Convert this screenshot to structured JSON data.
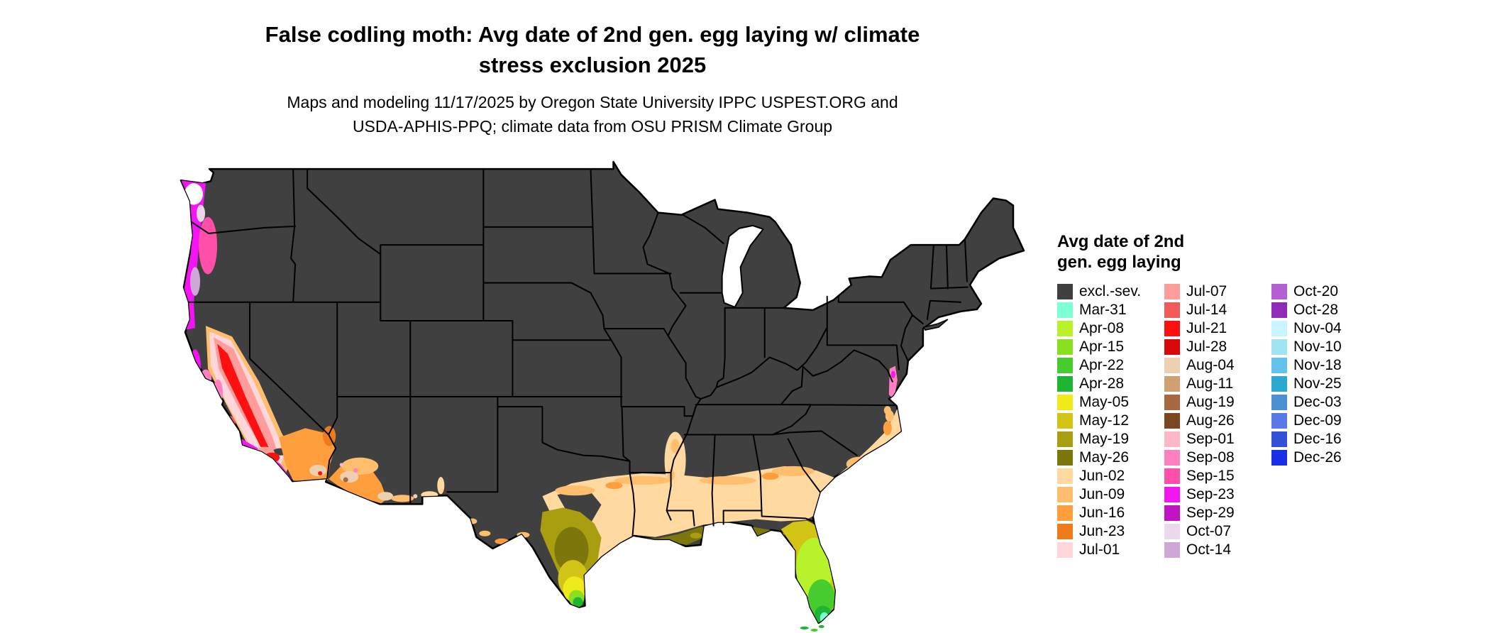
{
  "title": {
    "line1": "False codling moth: Avg date of 2nd gen. egg laying w/ climate",
    "line2": "stress exclusion 2025"
  },
  "subtitle": {
    "line1": "Maps and modeling 11/17/2025 by Oregon State University IPPC USPEST.ORG and",
    "line2": "USDA-APHIS-PPQ; climate data from OSU PRISM Climate Group"
  },
  "legend": {
    "title_line1": "Avg date of 2nd",
    "title_line2": "gen. egg laying",
    "columns": [
      [
        {
          "label": "excl.-sev.",
          "color": "#404040"
        },
        {
          "label": "Mar-31",
          "color": "#7fffd4"
        },
        {
          "label": "Apr-08",
          "color": "#b8f22b"
        },
        {
          "label": "Apr-15",
          "color": "#8ae01e"
        },
        {
          "label": "Apr-22",
          "color": "#46cc2e"
        },
        {
          "label": "Apr-28",
          "color": "#1fb434"
        },
        {
          "label": "May-05",
          "color": "#f0ea1a"
        },
        {
          "label": "May-12",
          "color": "#d2c414"
        },
        {
          "label": "May-19",
          "color": "#a89e10"
        },
        {
          "label": "May-26",
          "color": "#7d760b"
        },
        {
          "label": "Jun-02",
          "color": "#ffd9a0"
        },
        {
          "label": "Jun-09",
          "color": "#ffbe6e"
        },
        {
          "label": "Jun-16",
          "color": "#ff9e3d"
        },
        {
          "label": "Jun-23",
          "color": "#ef7c1c"
        },
        {
          "label": "Jul-01",
          "color": "#ffd6da"
        }
      ],
      [
        {
          "label": "Jul-07",
          "color": "#ff9d9d"
        },
        {
          "label": "Jul-14",
          "color": "#f25a5a"
        },
        {
          "label": "Jul-21",
          "color": "#fe1010"
        },
        {
          "label": "Jul-28",
          "color": "#d90707"
        },
        {
          "label": "Aug-04",
          "color": "#ecd0b0"
        },
        {
          "label": "Aug-11",
          "color": "#d0a070"
        },
        {
          "label": "Aug-19",
          "color": "#a86840"
        },
        {
          "label": "Aug-26",
          "color": "#7c4620"
        },
        {
          "label": "Sep-01",
          "color": "#ffb6c9"
        },
        {
          "label": "Sep-08",
          "color": "#ff7fc0"
        },
        {
          "label": "Sep-15",
          "color": "#ff4fa8"
        },
        {
          "label": "Sep-23",
          "color": "#f414f4"
        },
        {
          "label": "Sep-29",
          "color": "#c213c2"
        },
        {
          "label": "Oct-07",
          "color": "#ecd8ec"
        },
        {
          "label": "Oct-14",
          "color": "#cfa6d8"
        }
      ],
      [
        {
          "label": "Oct-20",
          "color": "#b560d2"
        },
        {
          "label": "Oct-28",
          "color": "#8e2cb8"
        },
        {
          "label": "Nov-04",
          "color": "#c9f4ff"
        },
        {
          "label": "Nov-10",
          "color": "#9fe4f2"
        },
        {
          "label": "Nov-18",
          "color": "#62c2ec"
        },
        {
          "label": "Nov-25",
          "color": "#2ba9d2"
        },
        {
          "label": "Dec-03",
          "color": "#4e8fd2"
        },
        {
          "label": "Dec-09",
          "color": "#5b79e6"
        },
        {
          "label": "Dec-16",
          "color": "#3250d8"
        },
        {
          "label": "Dec-26",
          "color": "#1a2ee8"
        }
      ]
    ]
  },
  "map": {
    "label": "Continental United States",
    "base_fill_label": "excl.-sev.",
    "border_color": "#000000",
    "background_color": "#ffffff",
    "colors": {
      "nodata": "#ffffff"
    }
  }
}
